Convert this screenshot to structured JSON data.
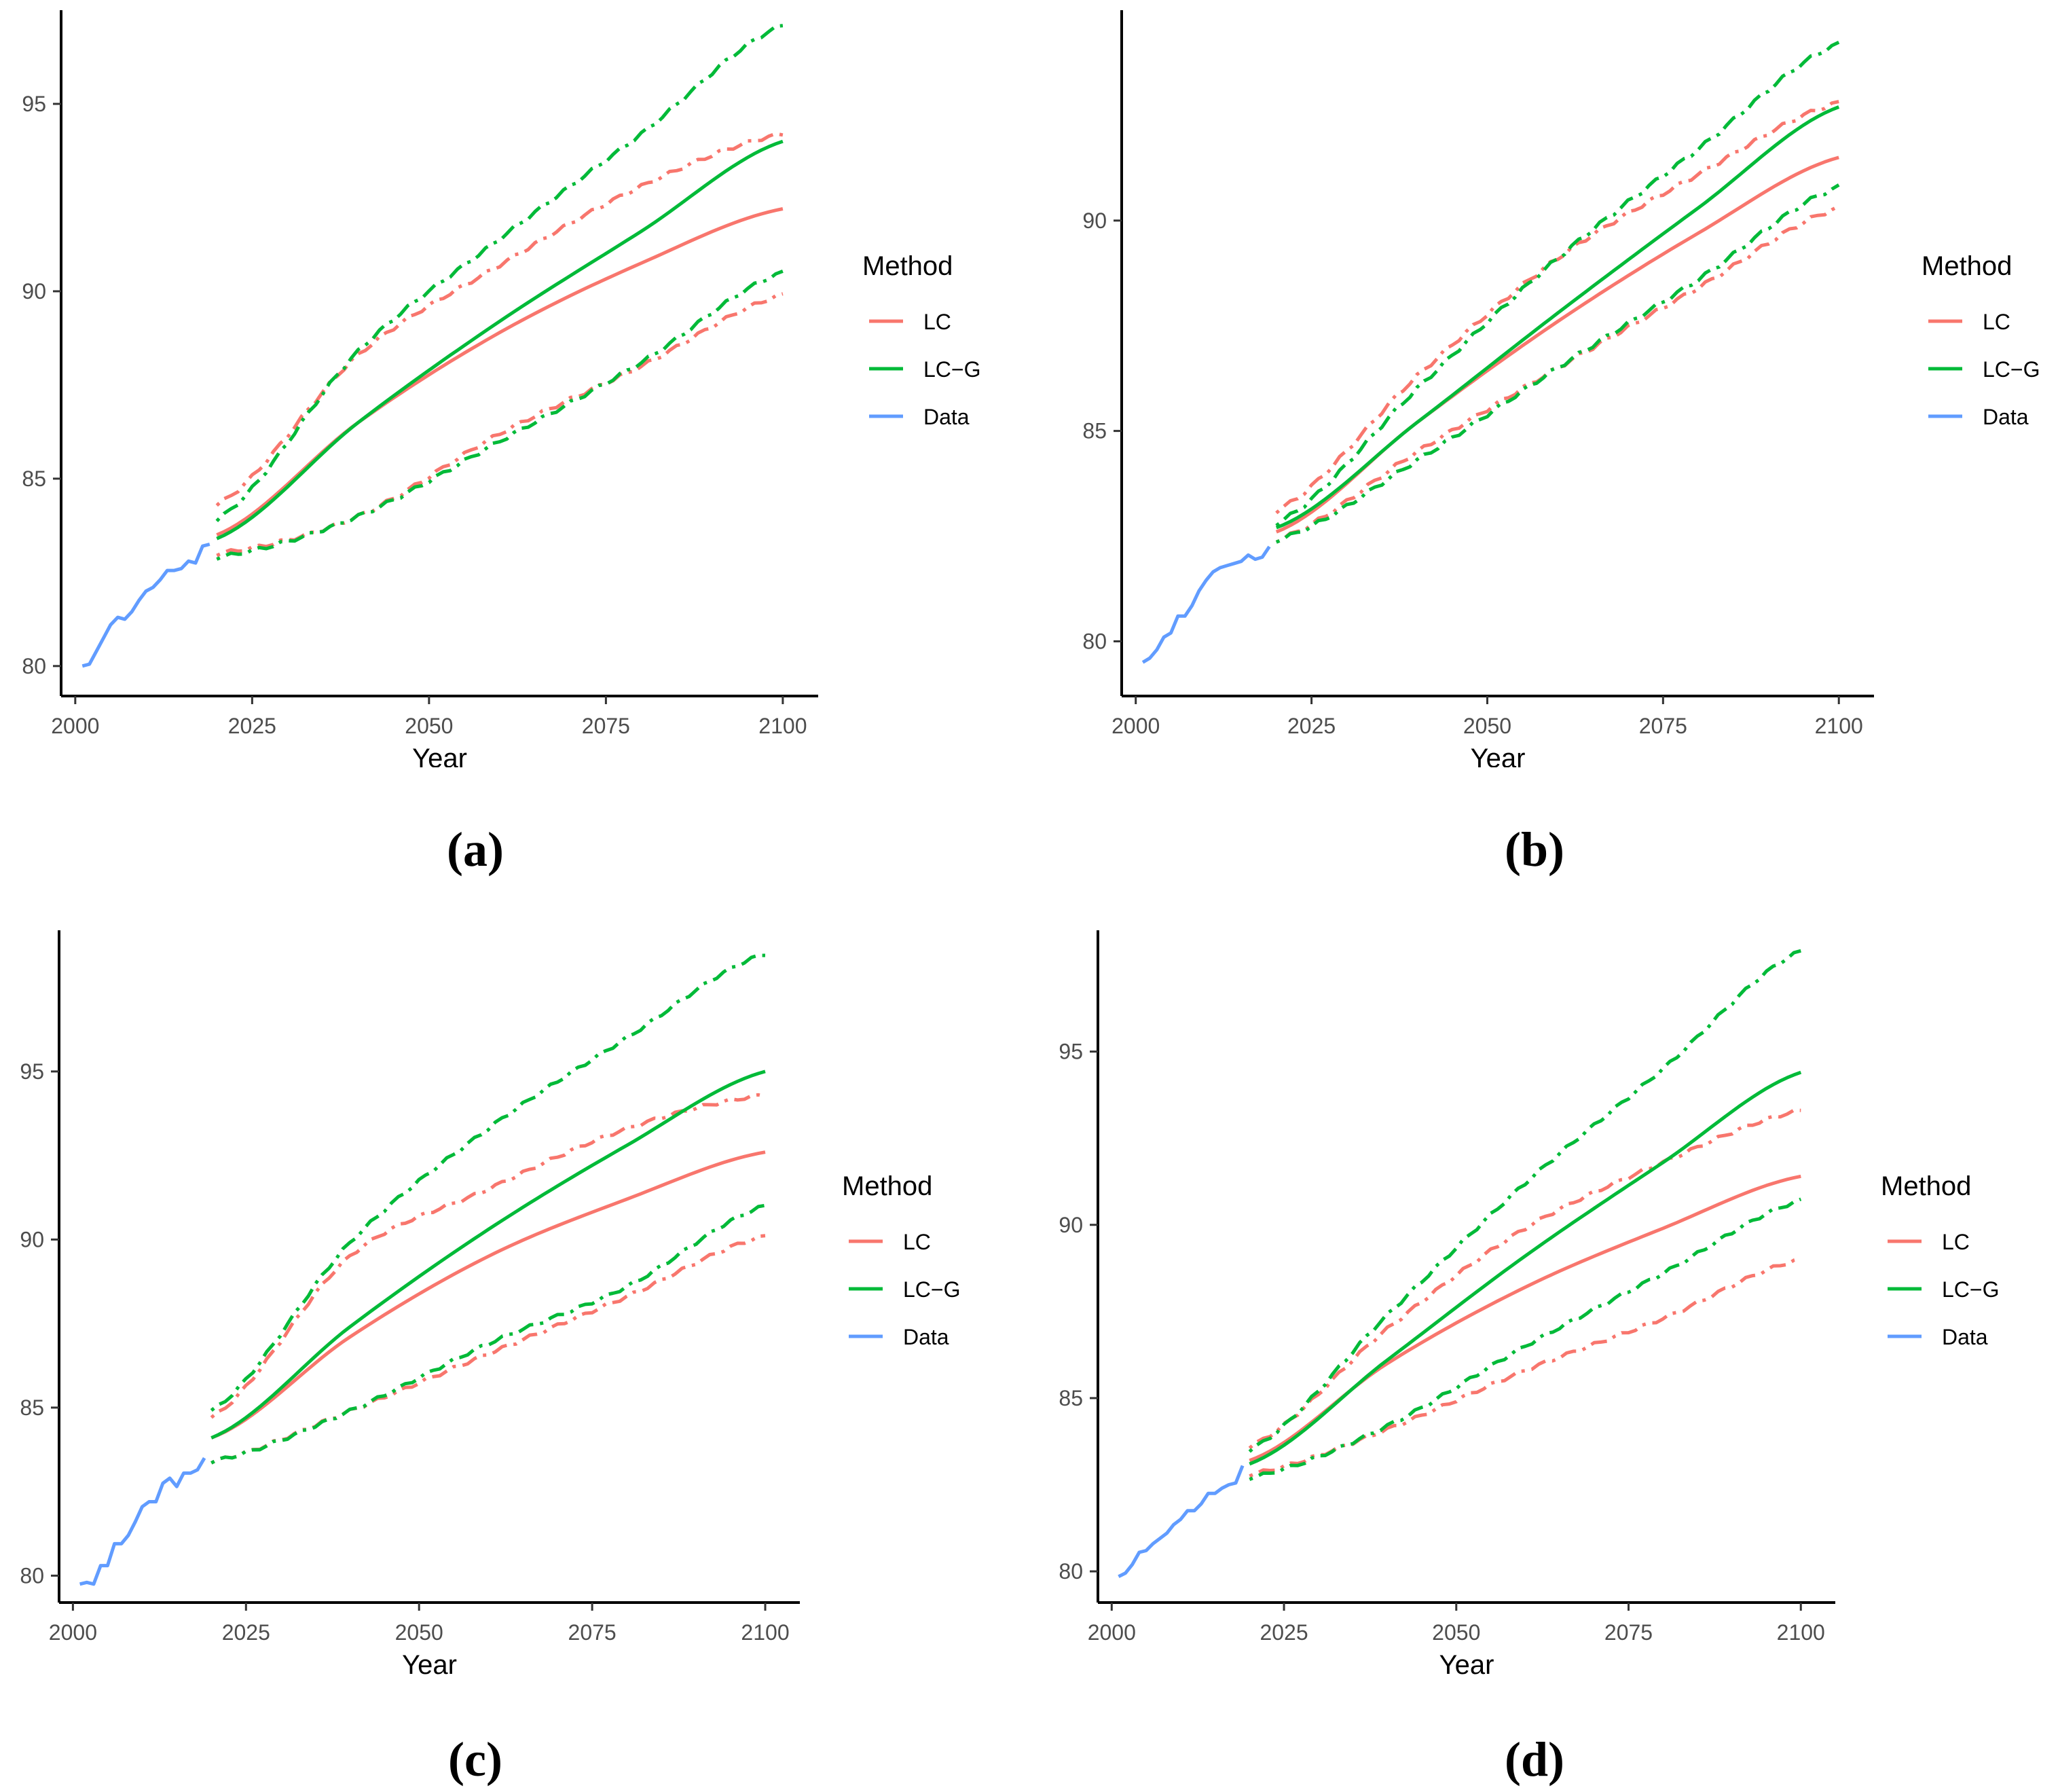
{
  "colors": {
    "LC": "#F8766D",
    "LC-G": "#00BA38",
    "Data": "#619CFF",
    "axis": "#000000",
    "tick_text": "#4D4D4D"
  },
  "chart_data": [
    {
      "type": "line",
      "caption": "(a)",
      "xlabel": "Year",
      "ylabel": "",
      "xlim": [
        1998,
        2105
      ],
      "ylim": [
        79.2,
        97.5
      ],
      "xticks": [
        2000,
        2025,
        2050,
        2075,
        2100
      ],
      "yticks": [
        80,
        85,
        90,
        95
      ],
      "legend": {
        "title": "Method",
        "entries": [
          "LC",
          "LC−G",
          "Data"
        ],
        "position": "right"
      },
      "data_series": {
        "name": "Data",
        "x": [
          2001,
          2002,
          2003,
          2004,
          2005,
          2006,
          2007,
          2008,
          2009,
          2010,
          2011,
          2012,
          2013,
          2014,
          2015,
          2016,
          2017,
          2018,
          2019
        ],
        "y": [
          80.0,
          80.05,
          80.4,
          80.75,
          81.1,
          81.3,
          81.25,
          81.45,
          81.75,
          82.0,
          82.1,
          82.3,
          82.55,
          82.55,
          82.6,
          82.8,
          82.75,
          83.2,
          83.25
        ]
      },
      "forecast_x": [
        2020,
        2040,
        2060,
        2080,
        2100
      ],
      "series": [
        {
          "name": "LC",
          "style": "solid",
          "values": [
            83.5,
            86.5,
            88.9,
            90.75,
            92.2
          ]
        },
        {
          "name": "LC upper",
          "style": "dotdash",
          "values": [
            84.3,
            88.3,
            90.7,
            92.8,
            94.2
          ]
        },
        {
          "name": "LC lower",
          "style": "dotdash",
          "values": [
            83.0,
            84.0,
            86.2,
            88.0,
            89.9
          ]
        },
        {
          "name": "LC-G",
          "style": "solid",
          "values": [
            83.4,
            86.5,
            89.2,
            91.6,
            94.0
          ]
        },
        {
          "name": "LC-G upper",
          "style": "dotdash",
          "values": [
            83.9,
            88.4,
            91.4,
            94.2,
            97.1
          ]
        },
        {
          "name": "LC-G lower",
          "style": "dotdash",
          "values": [
            82.9,
            84.0,
            86.0,
            88.1,
            90.5
          ]
        }
      ]
    },
    {
      "type": "line",
      "caption": "(b)",
      "xlabel": "Year",
      "ylabel": "",
      "xlim": [
        1998,
        2105
      ],
      "ylim": [
        78.7,
        95.0
      ],
      "xticks": [
        2000,
        2025,
        2050,
        2075,
        2100
      ],
      "yticks": [
        80,
        85,
        90
      ],
      "legend": {
        "title": "Method",
        "entries": [
          "LC",
          "LC−G",
          "Data"
        ],
        "position": "right"
      },
      "data_series": {
        "name": "Data",
        "x": [
          2001,
          2002,
          2003,
          2004,
          2005,
          2006,
          2007,
          2008,
          2009,
          2010,
          2011,
          2012,
          2013,
          2014,
          2015,
          2016,
          2017,
          2018,
          2019
        ],
        "y": [
          79.5,
          79.6,
          79.8,
          80.1,
          80.2,
          80.6,
          80.6,
          80.85,
          81.2,
          81.45,
          81.65,
          81.75,
          81.8,
          81.85,
          81.9,
          82.05,
          81.95,
          82.0,
          82.25
        ]
      },
      "forecast_x": [
        2020,
        2040,
        2060,
        2080,
        2100
      ],
      "series": [
        {
          "name": "LC",
          "style": "solid",
          "values": [
            82.6,
            85.2,
            87.6,
            89.7,
            91.5
          ]
        },
        {
          "name": "LC upper",
          "style": "dotdash",
          "values": [
            83.1,
            86.3,
            89.1,
            91.1,
            92.8
          ]
        },
        {
          "name": "LC lower",
          "style": "dotdash",
          "values": [
            82.4,
            84.5,
            86.5,
            88.4,
            90.3
          ]
        },
        {
          "name": "LC-G",
          "style": "solid",
          "values": [
            82.7,
            85.2,
            87.8,
            90.3,
            92.7
          ]
        },
        {
          "name": "LC-G upper",
          "style": "dotdash",
          "values": [
            82.8,
            86.0,
            89.1,
            91.7,
            94.2
          ]
        },
        {
          "name": "LC-G lower",
          "style": "dotdash",
          "values": [
            82.4,
            84.3,
            86.5,
            88.6,
            90.8
          ]
        }
      ]
    },
    {
      "type": "line",
      "caption": "(c)",
      "xlabel": "Year",
      "ylabel": "",
      "xlim": [
        1998,
        2105
      ],
      "ylim": [
        79.2,
        99.2
      ],
      "xticks": [
        2000,
        2025,
        2050,
        2075,
        2100
      ],
      "yticks": [
        80,
        85,
        90,
        95
      ],
      "legend": {
        "title": "Method",
        "entries": [
          "LC",
          "LC−G",
          "Data"
        ],
        "position": "right"
      },
      "data_series": {
        "name": "Data",
        "x": [
          2001,
          2002,
          2003,
          2004,
          2005,
          2006,
          2007,
          2008,
          2009,
          2010,
          2011,
          2012,
          2013,
          2014,
          2015,
          2016,
          2017,
          2018,
          2019
        ],
        "y": [
          79.75,
          79.8,
          79.75,
          80.3,
          80.3,
          80.95,
          80.95,
          81.2,
          81.6,
          82.05,
          82.2,
          82.2,
          82.75,
          82.9,
          82.65,
          83.05,
          83.05,
          83.15,
          83.5
        ]
      },
      "forecast_x": [
        2020,
        2040,
        2060,
        2080,
        2100
      ],
      "series": [
        {
          "name": "LC",
          "style": "solid",
          "values": [
            84.1,
            87.1,
            89.5,
            91.2,
            92.6
          ]
        },
        {
          "name": "LC upper",
          "style": "dotdash",
          "values": [
            84.7,
            89.5,
            91.5,
            93.3,
            94.3
          ]
        },
        {
          "name": "LC lower",
          "style": "dotdash",
          "values": [
            83.4,
            84.9,
            86.6,
            88.3,
            90.1
          ]
        },
        {
          "name": "LC-G",
          "style": "solid",
          "values": [
            84.1,
            87.4,
            90.3,
            92.8,
            95.0
          ]
        },
        {
          "name": "LC-G upper",
          "style": "dotdash",
          "values": [
            84.9,
            89.9,
            93.3,
            96.0,
            98.5
          ]
        },
        {
          "name": "LC-G lower",
          "style": "dotdash",
          "values": [
            83.4,
            84.9,
            86.9,
            88.6,
            91.0
          ]
        }
      ]
    },
    {
      "type": "line",
      "caption": "(d)",
      "xlabel": "Year",
      "ylabel": "",
      "xlim": [
        1998,
        2105
      ],
      "ylim": [
        79.1,
        98.5
      ],
      "xticks": [
        2000,
        2025,
        2050,
        2075,
        2100
      ],
      "yticks": [
        80,
        85,
        90,
        95
      ],
      "legend": {
        "title": "Method",
        "entries": [
          "LC",
          "LC−G",
          "Data"
        ],
        "position": "right"
      },
      "data_series": {
        "name": "Data",
        "x": [
          2001,
          2002,
          2003,
          2004,
          2005,
          2006,
          2007,
          2008,
          2009,
          2010,
          2011,
          2012,
          2013,
          2014,
          2015,
          2016,
          2017,
          2018,
          2019
        ],
        "y": [
          79.85,
          79.95,
          80.2,
          80.55,
          80.6,
          80.8,
          80.95,
          81.1,
          81.35,
          81.5,
          81.75,
          81.75,
          81.95,
          82.25,
          82.25,
          82.4,
          82.5,
          82.55,
          83.05
        ]
      },
      "forecast_x": [
        2020,
        2040,
        2060,
        2080,
        2100
      ],
      "series": [
        {
          "name": "LC",
          "style": "solid",
          "values": [
            83.2,
            86.0,
            88.2,
            89.9,
            91.4
          ]
        },
        {
          "name": "LC upper",
          "style": "dotdash",
          "values": [
            83.6,
            87.0,
            89.9,
            91.8,
            93.3
          ]
        },
        {
          "name": "LC lower",
          "style": "dotdash",
          "values": [
            82.8,
            84.1,
            85.8,
            87.3,
            89.0
          ]
        },
        {
          "name": "LC-G",
          "style": "solid",
          "values": [
            83.1,
            86.1,
            89.1,
            91.8,
            94.4
          ]
        },
        {
          "name": "LC-G upper",
          "style": "dotdash",
          "values": [
            83.5,
            87.4,
            91.2,
            94.5,
            97.9
          ]
        },
        {
          "name": "LC-G lower",
          "style": "dotdash",
          "values": [
            82.7,
            84.2,
            86.5,
            88.6,
            90.7
          ]
        }
      ]
    }
  ]
}
